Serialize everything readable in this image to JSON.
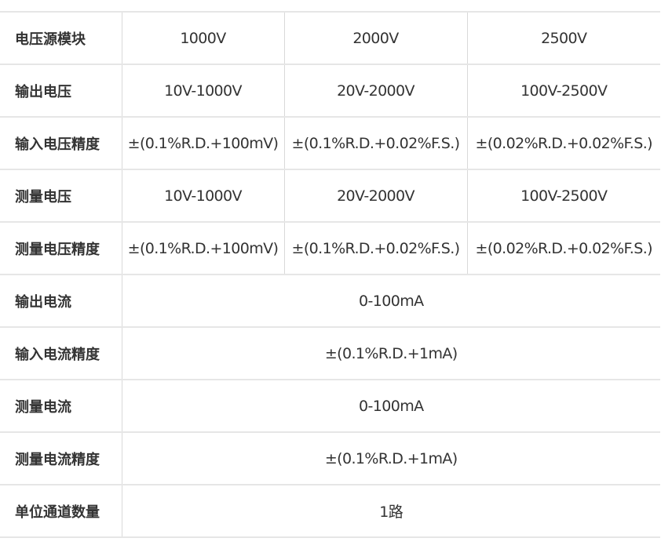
{
  "rows": [
    {
      "label": "电压源模块",
      "cells": [
        "1000V",
        "2000V",
        "2500V"
      ]
    },
    {
      "label": "输出电压",
      "cells": [
        "10V-1000V",
        "20V-2000V",
        "100V-2500V"
      ]
    },
    {
      "label": "输入电压精度",
      "cells": [
        "±(0.1%R.D.+100mV)",
        "±(0.1%R.D.+0.02%F.S.)",
        "±(0.02%R.D.+0.02%F.S.)"
      ]
    },
    {
      "label": "测量电压",
      "cells": [
        "10V-1000V",
        "20V-2000V",
        "100V-2500V"
      ]
    },
    {
      "label": "测量电压精度",
      "cells": [
        "±(0.1%R.D.+100mV)",
        "±(0.1%R.D.+0.02%F.S.)",
        "±(0.02%R.D.+0.02%F.S.)"
      ]
    },
    {
      "label": "输出电流",
      "cells": [
        "0-100mA"
      ]
    },
    {
      "label": "输入电流精度",
      "cells": [
        "±(0.1%R.D.+1mA)"
      ]
    },
    {
      "label": "测量电流",
      "cells": [
        "0-100mA"
      ]
    },
    {
      "label": "测量电流精度",
      "cells": [
        "±(0.1%R.D.+1mA)"
      ]
    },
    {
      "label": "单位通道数量",
      "cells": [
        "1路"
      ]
    }
  ]
}
